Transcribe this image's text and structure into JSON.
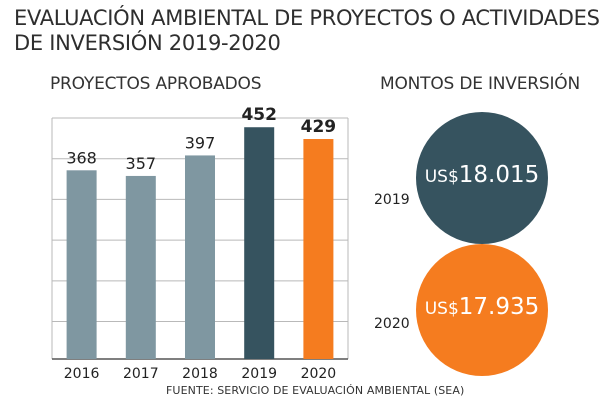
{
  "title_line1": "EVALUACIÓN AMBIENTAL DE PROYECTOS O ACTIVIDADES",
  "title_line2": "DE INVERSIÓN 2019-2020",
  "source": "FUENTE: SERVICIO DE EVALUACIÓN  AMBIENTAL (SEA)",
  "colors": {
    "gray_bar": "#7f97a1",
    "dark_teal": "#36535f",
    "orange": "#f57c1f",
    "grid": "#b9b9b9"
  },
  "chart_data": [
    {
      "type": "bar",
      "title": "PROYECTOS APROBADOS",
      "categories": [
        "2016",
        "2017",
        "2018",
        "2019",
        "2020"
      ],
      "values": [
        368,
        357,
        397,
        452,
        429
      ],
      "data_labels": [
        "368",
        "357",
        "397",
        "452",
        "429"
      ],
      "bar_colors": [
        "#7f97a1",
        "#7f97a1",
        "#7f97a1",
        "#36535f",
        "#f57c1f"
      ],
      "ylim": [
        0,
        470
      ],
      "grid": true
    },
    {
      "type": "bubble",
      "title": "MONTOS DE INVERSIÓN",
      "categories": [
        "2019",
        "2020"
      ],
      "values": [
        18.015,
        17.935
      ],
      "currency_prefix": "US$",
      "value_labels": [
        "18.015",
        "17.935"
      ],
      "bubble_colors": [
        "#36535f",
        "#f57c1f"
      ]
    }
  ]
}
